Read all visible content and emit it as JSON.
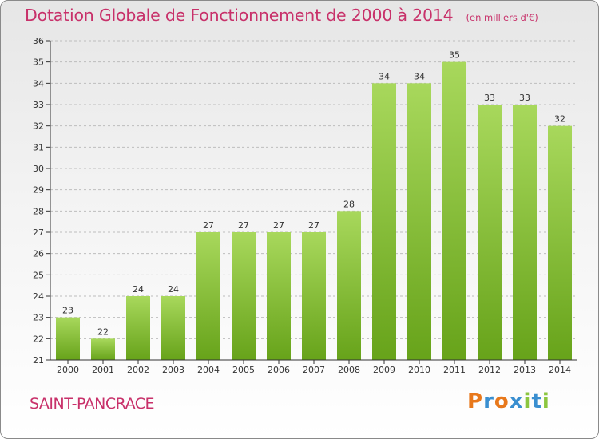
{
  "header": {
    "title": "Dotation Globale de Fonctionnement de 2000 à 2014",
    "subtitle": "(en milliers d'€)"
  },
  "footer": {
    "commune": "SAINT-PANCRACE",
    "logo_text": "Proxiti"
  },
  "colors": {
    "title": "#c8316a",
    "bar_light": "#a6d65a",
    "bar_dark": "#6aa51e",
    "grid": "#bbbbbb",
    "axis": "#333333"
  },
  "chart_data": {
    "type": "bar",
    "categories": [
      "2000",
      "2001",
      "2002",
      "2003",
      "2004",
      "2005",
      "2006",
      "2007",
      "2008",
      "2009",
      "2010",
      "2011",
      "2012",
      "2013",
      "2014"
    ],
    "values": [
      23,
      22,
      24,
      24,
      27,
      27,
      27,
      27,
      28,
      34,
      34,
      35,
      33,
      33,
      32
    ],
    "title": "Dotation Globale de Fonctionnement de 2000 à 2014",
    "subtitle": "(en milliers d'€)",
    "xlabel": "",
    "ylabel": "",
    "ylim": [
      21,
      36
    ],
    "yticks": [
      21,
      22,
      23,
      24,
      25,
      26,
      27,
      28,
      29,
      30,
      31,
      32,
      33,
      34,
      35,
      36
    ],
    "grid": "horizontal dashed",
    "legend": "none",
    "data_labels": true
  }
}
